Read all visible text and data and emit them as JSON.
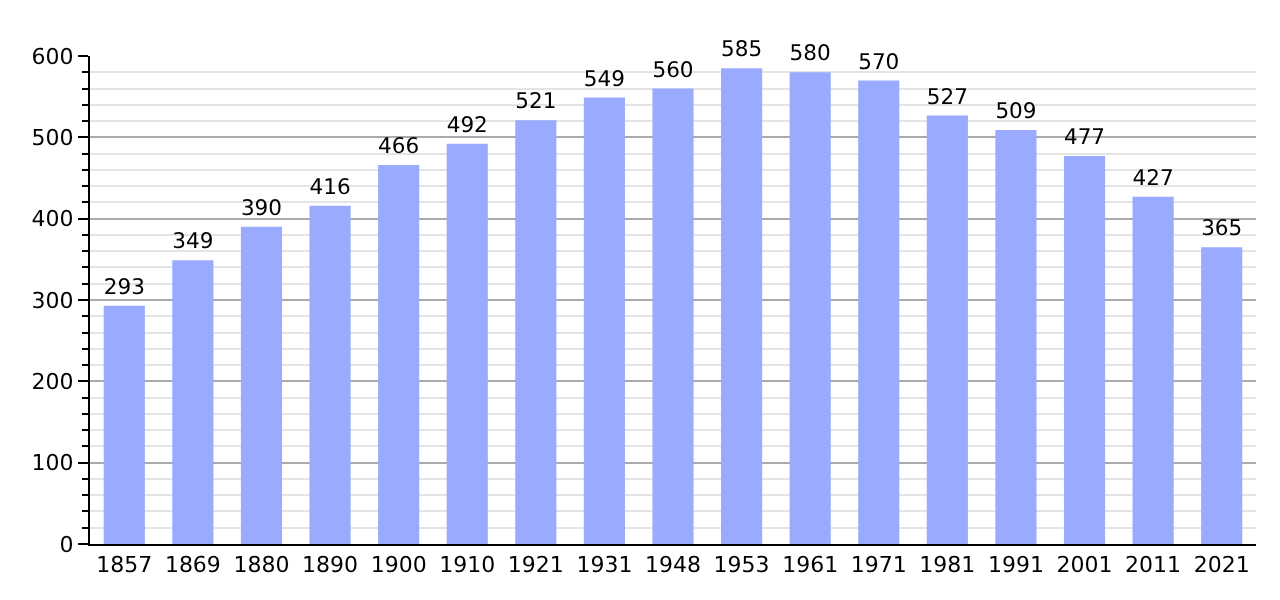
{
  "chart_data": {
    "type": "bar",
    "categories": [
      "1857",
      "1869",
      "1880",
      "1890",
      "1900",
      "1910",
      "1921",
      "1931",
      "1948",
      "1953",
      "1961",
      "1971",
      "1981",
      "1991",
      "2001",
      "2011",
      "2021"
    ],
    "values": [
      293,
      349,
      390,
      416,
      466,
      492,
      521,
      549,
      560,
      585,
      580,
      570,
      527,
      509,
      477,
      427,
      365
    ],
    "color": "#99aaff",
    "ylim": [
      0,
      600
    ],
    "yticks": [
      0,
      100,
      200,
      300,
      400,
      500,
      600
    ],
    "grid": "y",
    "data_labels": true
  }
}
